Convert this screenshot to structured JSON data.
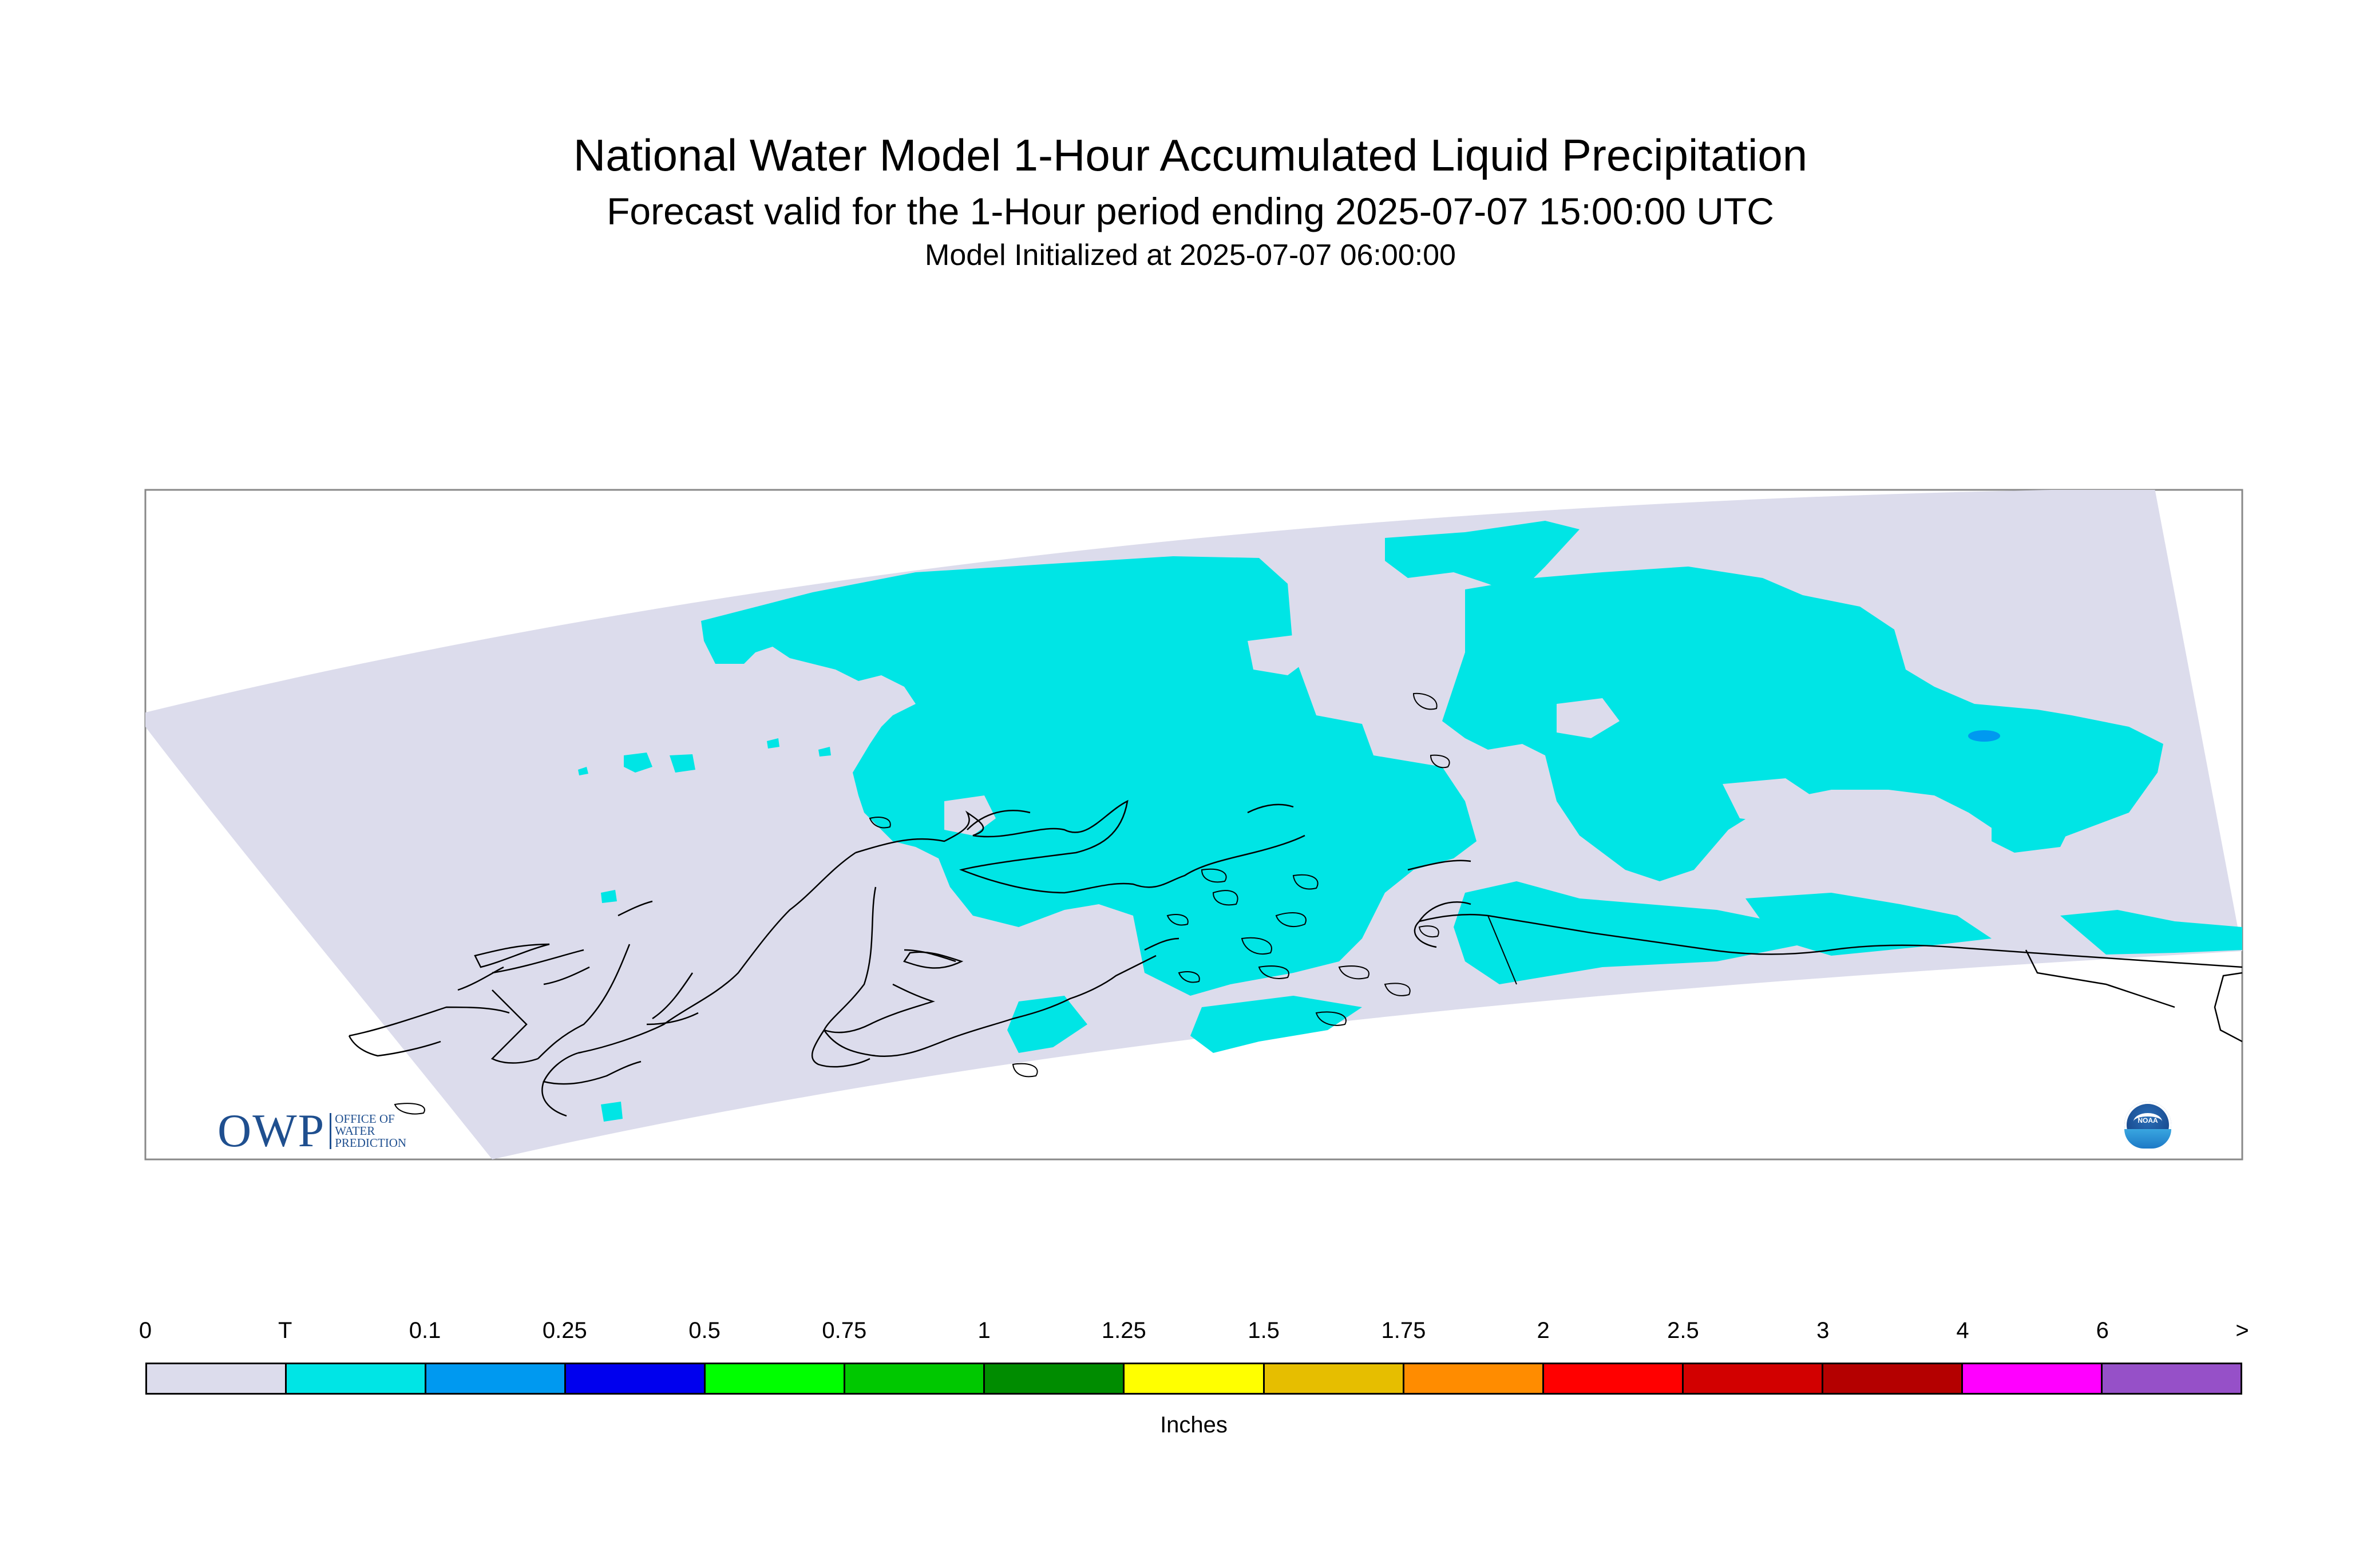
{
  "title": {
    "main": "National Water Model 1-Hour Accumulated Liquid Precipitation",
    "sub": "Forecast valid for the 1-Hour period ending 2025-07-07 15:00:00 UTC",
    "init": "Model Initialized at 2025-07-07 06:00:00"
  },
  "map": {
    "region": "Alaska",
    "background_color": "#dcdcec",
    "precip_color": "#00e5e5",
    "heavier_precip_color": "#0099f0",
    "coastline_color": "#000000"
  },
  "legend": {
    "labels": [
      "0",
      "T",
      "0.1",
      "0.25",
      "0.5",
      "0.75",
      "1",
      "1.25",
      "1.5",
      "1.75",
      "2",
      "2.5",
      "3",
      "4",
      "6",
      ">"
    ],
    "colors": [
      "#dcdcec",
      "#00e5e5",
      "#0099f0",
      "#0000ee",
      "#00ff00",
      "#00c800",
      "#008c00",
      "#ffff00",
      "#e6be00",
      "#ff8c00",
      "#ff0000",
      "#d20000",
      "#b40000",
      "#ff00ff",
      "#9650c8"
    ],
    "units": "Inches"
  },
  "logos": {
    "owp": {
      "text": "OWP",
      "subtext": [
        "OFFICE OF",
        "WATER",
        "PREDICTION"
      ]
    },
    "noaa": {
      "text": "NOAA"
    }
  }
}
